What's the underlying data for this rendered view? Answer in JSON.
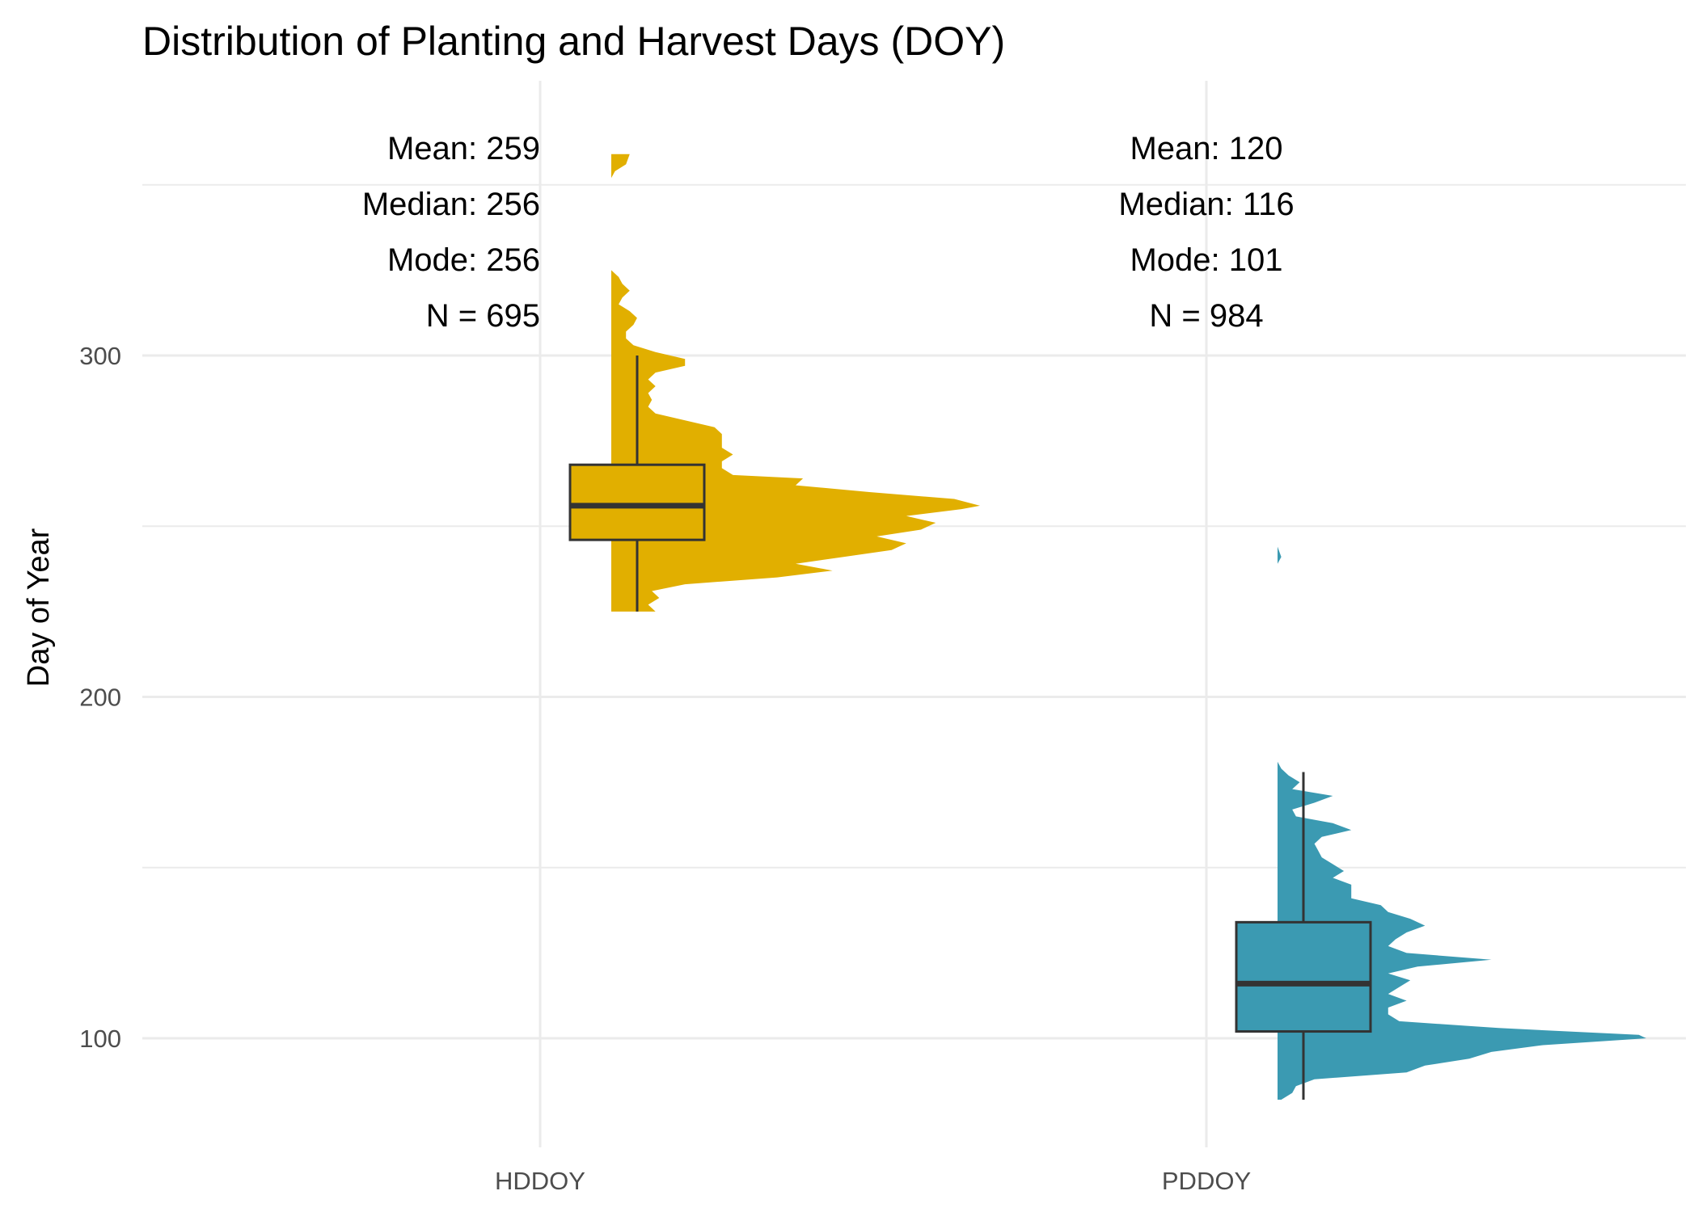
{
  "chart_data": {
    "type": "violin-box",
    "title": "Distribution of Planting and Harvest Days (DOY)",
    "xlabel": "",
    "ylabel": "Day of Year",
    "ylim": [
      70,
      372
    ],
    "yticks": [
      100,
      200,
      300
    ],
    "grid": true,
    "categories": [
      "HDDOY",
      "PDDOY"
    ],
    "series": [
      {
        "category": "HDDOY",
        "color": "#E1AF00",
        "stats_lines": [
          "Mean: 259",
          "Median: 256",
          "Mode: 256",
          "N = 695"
        ],
        "box": {
          "min": 225,
          "q1": 246,
          "median": 256,
          "q3": 268,
          "max": 300
        },
        "density_range": [
          225,
          359
        ],
        "density": [
          [
            225,
            0.12
          ],
          [
            227,
            0.1
          ],
          [
            229,
            0.13
          ],
          [
            231,
            0.11
          ],
          [
            233,
            0.2
          ],
          [
            235,
            0.45
          ],
          [
            237,
            0.6
          ],
          [
            239,
            0.5
          ],
          [
            241,
            0.63
          ],
          [
            243,
            0.76
          ],
          [
            245,
            0.8
          ],
          [
            247,
            0.72
          ],
          [
            249,
            0.84
          ],
          [
            251,
            0.88
          ],
          [
            253,
            0.8
          ],
          [
            255,
            0.95
          ],
          [
            256,
            1.0
          ],
          [
            258,
            0.93
          ],
          [
            260,
            0.7
          ],
          [
            262,
            0.5
          ],
          [
            264,
            0.52
          ],
          [
            265,
            0.33
          ],
          [
            267,
            0.3
          ],
          [
            269,
            0.3
          ],
          [
            271,
            0.33
          ],
          [
            273,
            0.3
          ],
          [
            275,
            0.3
          ],
          [
            277,
            0.3
          ],
          [
            279,
            0.28
          ],
          [
            281,
            0.2
          ],
          [
            283,
            0.12
          ],
          [
            285,
            0.1
          ],
          [
            287,
            0.11
          ],
          [
            289,
            0.1
          ],
          [
            291,
            0.12
          ],
          [
            293,
            0.1
          ],
          [
            295,
            0.12
          ],
          [
            297,
            0.2
          ],
          [
            299,
            0.2
          ],
          [
            301,
            0.12
          ],
          [
            303,
            0.06
          ],
          [
            305,
            0.04
          ],
          [
            307,
            0.04
          ],
          [
            309,
            0.06
          ],
          [
            311,
            0.07
          ],
          [
            313,
            0.05
          ],
          [
            315,
            0.02
          ],
          [
            317,
            0.03
          ],
          [
            319,
            0.05
          ],
          [
            321,
            0.03
          ],
          [
            323,
            0.02
          ],
          [
            325,
            0.0
          ],
          [
            327,
            0.0
          ],
          [
            352,
            0.0
          ],
          [
            354,
            0.01
          ],
          [
            356,
            0.04
          ],
          [
            359,
            0.05
          ]
        ]
      },
      {
        "category": "PDDOY",
        "color": "#3B9AB2",
        "stats_lines": [
          "Mean: 120",
          "Median: 116",
          "Mode: 101",
          "N = 984"
        ],
        "box": {
          "min": 82,
          "q1": 102,
          "median": 116,
          "q3": 134,
          "max": 178
        },
        "density_range": [
          82,
          244
        ],
        "density": [
          [
            82,
            0.01
          ],
          [
            84,
            0.04
          ],
          [
            86,
            0.05
          ],
          [
            88,
            0.1
          ],
          [
            90,
            0.35
          ],
          [
            92,
            0.4
          ],
          [
            94,
            0.52
          ],
          [
            96,
            0.58
          ],
          [
            98,
            0.72
          ],
          [
            100,
            1.0
          ],
          [
            101,
            0.98
          ],
          [
            103,
            0.6
          ],
          [
            105,
            0.33
          ],
          [
            107,
            0.3
          ],
          [
            109,
            0.3
          ],
          [
            111,
            0.35
          ],
          [
            113,
            0.3
          ],
          [
            115,
            0.33
          ],
          [
            117,
            0.36
          ],
          [
            119,
            0.3
          ],
          [
            121,
            0.38
          ],
          [
            123,
            0.58
          ],
          [
            125,
            0.35
          ],
          [
            127,
            0.3
          ],
          [
            129,
            0.32
          ],
          [
            131,
            0.35
          ],
          [
            133,
            0.4
          ],
          [
            135,
            0.36
          ],
          [
            137,
            0.3
          ],
          [
            139,
            0.28
          ],
          [
            141,
            0.2
          ],
          [
            143,
            0.2
          ],
          [
            145,
            0.2
          ],
          [
            147,
            0.15
          ],
          [
            149,
            0.18
          ],
          [
            151,
            0.15
          ],
          [
            153,
            0.12
          ],
          [
            155,
            0.11
          ],
          [
            157,
            0.1
          ],
          [
            159,
            0.12
          ],
          [
            161,
            0.2
          ],
          [
            163,
            0.15
          ],
          [
            165,
            0.05
          ],
          [
            167,
            0.04
          ],
          [
            169,
            0.1
          ],
          [
            171,
            0.15
          ],
          [
            173,
            0.04
          ],
          [
            175,
            0.06
          ],
          [
            177,
            0.03
          ],
          [
            179,
            0.01
          ],
          [
            181,
            0.0
          ],
          [
            182,
            0.0
          ],
          [
            239,
            0.0
          ],
          [
            241,
            0.01
          ],
          [
            244,
            0.0
          ]
        ]
      }
    ]
  }
}
